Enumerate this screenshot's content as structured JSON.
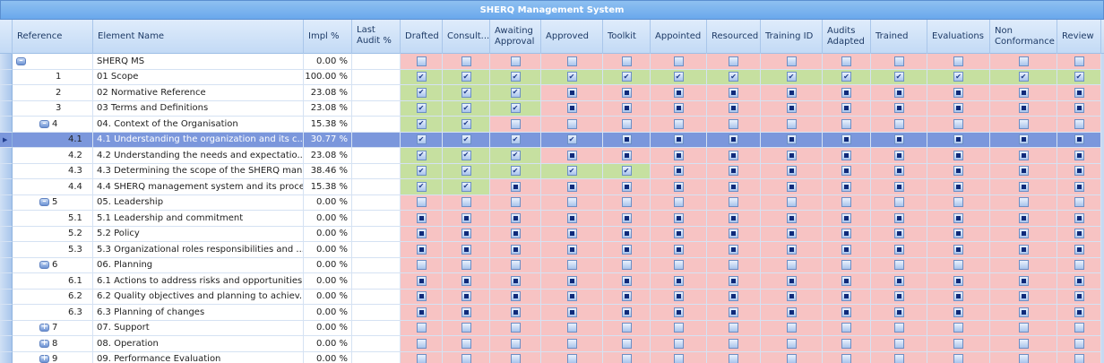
{
  "title": "SHERQ Management System",
  "columns": {
    "reference": "Reference",
    "element_name": "Element Name",
    "impl": "Impl %",
    "last_audit": "Last Audit %"
  },
  "status_columns": [
    "Drafted",
    "Consult...",
    "Awaiting Approval",
    "Approved",
    "Toolkit",
    "Appointed",
    "Resourced",
    "Training ID",
    "Audits Adapted",
    "Trained",
    "Evaluations",
    "Non Conformance",
    "Review"
  ],
  "colors": {
    "complete": "#c6e0a0",
    "incomplete": "#f7c3c3",
    "selected": "#7b97dc"
  },
  "checkbox_states": {
    "c": "checked",
    "i": "indeterminate",
    "e": "unchecked"
  },
  "rows": [
    {
      "ref": "",
      "name": "SHERQ MS",
      "impl": "0.00 %",
      "level": 0,
      "toggle": "minus",
      "states": "eeeeeeeeeeeee"
    },
    {
      "ref": "1",
      "name": "01 Scope",
      "impl": "100.00 %",
      "level": 1,
      "states": "ccccccccccccc"
    },
    {
      "ref": "2",
      "name": "02 Normative Reference",
      "impl": "23.08 %",
      "level": 1,
      "states": "ccciiiiiiiiii"
    },
    {
      "ref": "3",
      "name": "03 Terms and Definitions",
      "impl": "23.08 %",
      "level": 1,
      "states": "ccciiiiiiiiii"
    },
    {
      "ref": "4",
      "name": "04. Context of the Organisation",
      "impl": "15.38 %",
      "level": 1,
      "toggle": "minus",
      "states": "cceeeeeeeeeee"
    },
    {
      "ref": "4.1",
      "name": "4.1  Understanding the organization and its c...",
      "impl": "30.77 %",
      "level": 2,
      "selected": true,
      "states": "cccciiiiiiiii"
    },
    {
      "ref": "4.2",
      "name": "4.2  Understanding the needs and expectatio...",
      "impl": "23.08 %",
      "level": 2,
      "states": "ccciiiiiiiiii"
    },
    {
      "ref": "4.3",
      "name": "4.3  Determining the scope of the SHERQ man...",
      "impl": "38.46 %",
      "level": 2,
      "states": "ccccciiiiiiii"
    },
    {
      "ref": "4.4",
      "name": "4.4  SHERQ management system and its proces...",
      "impl": "15.38 %",
      "level": 2,
      "states": "cciiiiiiiiiii"
    },
    {
      "ref": "5",
      "name": "05. Leadership",
      "impl": "0.00 %",
      "level": 1,
      "toggle": "minus",
      "states": "eeeeeeeeeeeee"
    },
    {
      "ref": "5.1",
      "name": "5.1  Leadership and commitment",
      "impl": "0.00 %",
      "level": 2,
      "states": "iiiiiiiiiiiii"
    },
    {
      "ref": "5.2",
      "name": "5.2  Policy",
      "impl": "0.00 %",
      "level": 2,
      "states": "iiiiiiiiiiiii"
    },
    {
      "ref": "5.3",
      "name": "5.3  Organizational roles responsibilities and ...",
      "impl": "0.00 %",
      "level": 2,
      "states": "iiiiiiiiiiiii"
    },
    {
      "ref": "6",
      "name": "06. Planning",
      "impl": "0.00 %",
      "level": 1,
      "toggle": "minus",
      "states": "eeeeeeeeeeeee"
    },
    {
      "ref": "6.1",
      "name": "6.1  Actions to address risks and opportunities",
      "impl": "0.00 %",
      "level": 2,
      "states": "iiiiiiiiiiiii"
    },
    {
      "ref": "6.2",
      "name": "6.2  Quality objectives and planning to achiev...",
      "impl": "0.00 %",
      "level": 2,
      "states": "iiiiiiiiiiiii"
    },
    {
      "ref": "6.3",
      "name": "6.3  Planning of changes",
      "impl": "0.00 %",
      "level": 2,
      "states": "iiiiiiiiiiiii"
    },
    {
      "ref": "7",
      "name": "07. Support",
      "impl": "0.00 %",
      "level": 1,
      "toggle": "plus",
      "states": "eeeeeeeeeeeee"
    },
    {
      "ref": "8",
      "name": "08. Operation",
      "impl": "0.00 %",
      "level": 1,
      "toggle": "plus",
      "states": "eeeeeeeeeeeee"
    },
    {
      "ref": "9",
      "name": "09. Performance Evaluation",
      "impl": "0.00 %",
      "level": 1,
      "toggle": "plus",
      "states": "eeeeeeeeeeeee"
    }
  ]
}
